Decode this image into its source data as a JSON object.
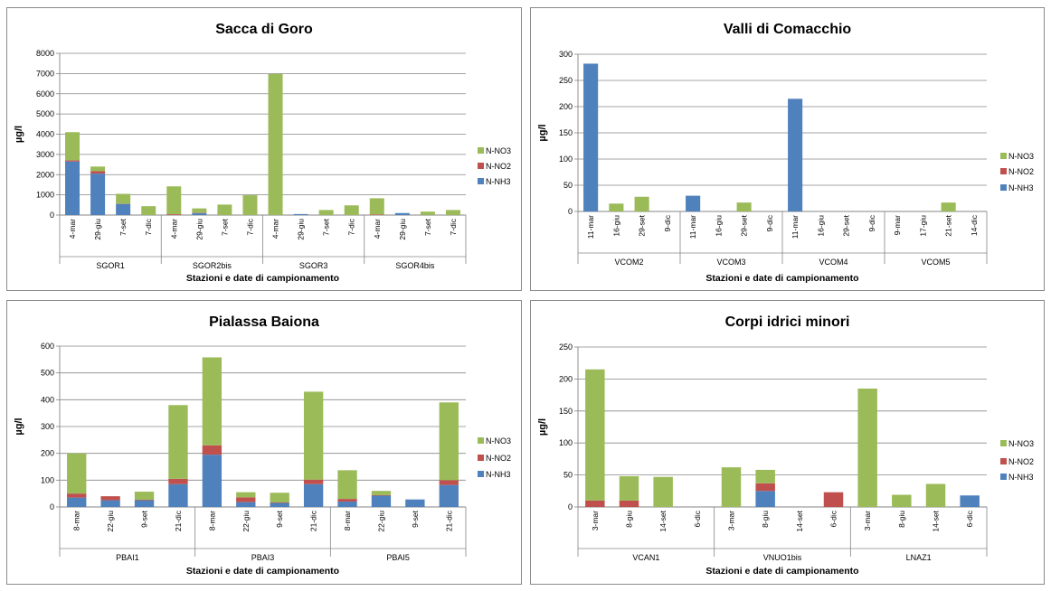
{
  "colors": {
    "N-NH3": "#4f81bd",
    "N-NO2": "#c0504d",
    "N-NO3": "#9bbb59",
    "grid": "#868686",
    "axis": "#868686"
  },
  "chart_data": [
    {
      "type": "bar",
      "stacked": true,
      "title": "Sacca di Goro",
      "ylabel": "µg/l",
      "xlabel": "Stazioni e date di campionamento",
      "ylim": [
        0,
        8000
      ],
      "yticks": [
        "0",
        "1000",
        "2000",
        "3000",
        "4000",
        "5000",
        "6000",
        "7000",
        "8000"
      ],
      "grid": true,
      "legend": "right",
      "groups": [
        {
          "station": "SGOR1",
          "dates": [
            "4-mar",
            "29-giu",
            "7-set",
            "7-dic"
          ]
        },
        {
          "station": "SGOR2bis",
          "dates": [
            "4-mar",
            "29-giu",
            "7-set",
            "7-dic"
          ]
        },
        {
          "station": "SGOR3",
          "dates": [
            "4-mar",
            "29-giu",
            "7-set",
            "7-dic"
          ]
        },
        {
          "station": "SGOR4bis",
          "dates": [
            "4-mar",
            "29-giu",
            "7-set",
            "7-dic"
          ]
        }
      ],
      "series": [
        {
          "name": "N-NH3",
          "values": [
            2650,
            2050,
            550,
            0,
            0,
            100,
            0,
            0,
            0,
            50,
            0,
            0,
            0,
            100,
            0,
            0
          ]
        },
        {
          "name": "N-NO2",
          "values": [
            60,
            120,
            10,
            0,
            40,
            20,
            0,
            0,
            0,
            0,
            0,
            0,
            30,
            0,
            0,
            0
          ]
        },
        {
          "name": "N-NO3",
          "values": [
            1390,
            230,
            490,
            440,
            1380,
            210,
            520,
            980,
            6980,
            0,
            250,
            480,
            800,
            0,
            170,
            250
          ]
        }
      ],
      "legend_order": [
        "N-NO3",
        "N-NO2",
        "N-NH3"
      ]
    },
    {
      "type": "bar",
      "stacked": true,
      "title": "Valli di Comacchio",
      "ylabel": "µg/l",
      "xlabel": "Stazioni e date di campionamento",
      "ylim": [
        0,
        300
      ],
      "yticks": [
        "0",
        "50",
        "100",
        "150",
        "200",
        "250",
        "300"
      ],
      "grid": true,
      "legend": "right",
      "groups": [
        {
          "station": "VCOM2",
          "dates": [
            "11-mar",
            "16-giu",
            "29-set",
            "9-dic"
          ]
        },
        {
          "station": "VCOM3",
          "dates": [
            "11-mar",
            "16-giu",
            "29-set",
            "9-dic"
          ]
        },
        {
          "station": "VCOM4",
          "dates": [
            "11-mar",
            "16-giu",
            "29-set",
            "9-dic"
          ]
        },
        {
          "station": "VCOM5",
          "dates": [
            "9-mar",
            "17-giu",
            "21-set",
            "14-dic"
          ]
        }
      ],
      "series": [
        {
          "name": "N-NH3",
          "values": [
            282,
            0,
            0,
            0,
            30,
            0,
            0,
            0,
            215,
            0,
            0,
            0,
            0,
            0,
            0,
            0
          ]
        },
        {
          "name": "N-NO2",
          "values": [
            0,
            0,
            0,
            0,
            0,
            0,
            0,
            0,
            0,
            0,
            0,
            0,
            0,
            0,
            0,
            0
          ]
        },
        {
          "name": "N-NO3",
          "values": [
            0,
            15,
            28,
            0,
            0,
            0,
            17,
            0,
            0,
            0,
            0,
            0,
            0,
            0,
            17,
            0
          ]
        }
      ],
      "legend_order": [
        "N-NO3",
        "N-NO2",
        "N-NH3"
      ]
    },
    {
      "type": "bar",
      "stacked": true,
      "title": "Pialassa Baiona",
      "ylabel": "µg/l",
      "xlabel": "Stazioni e date di campionamento",
      "ylim": [
        0,
        600
      ],
      "yticks": [
        "0",
        "100",
        "200",
        "300",
        "400",
        "500",
        "600"
      ],
      "grid": true,
      "legend": "right",
      "groups": [
        {
          "station": "PBAI1",
          "dates": [
            "8-mar",
            "22-giu",
            "9-set",
            "21-dic"
          ]
        },
        {
          "station": "PBAI3",
          "dates": [
            "8-mar",
            "22-giu",
            "9-set",
            "21-dic"
          ]
        },
        {
          "station": "PBAI5",
          "dates": [
            "8-mar",
            "22-giu",
            "9-set",
            "21-dic"
          ]
        }
      ],
      "series": [
        {
          "name": "N-NH3",
          "values": [
            35,
            25,
            25,
            85,
            195,
            18,
            15,
            85,
            20,
            42,
            28,
            82
          ]
        },
        {
          "name": "N-NO2",
          "values": [
            15,
            15,
            2,
            20,
            35,
            18,
            2,
            17,
            10,
            2,
            0,
            18
          ]
        },
        {
          "name": "N-NO3",
          "values": [
            150,
            0,
            30,
            275,
            328,
            19,
            36,
            328,
            107,
            16,
            0,
            290
          ]
        }
      ],
      "legend_order": [
        "N-NO3",
        "N-NO2",
        "N-NH3"
      ]
    },
    {
      "type": "bar",
      "stacked": true,
      "title": "Corpi idrici minori",
      "ylabel": "µg/l",
      "xlabel": "Stazioni e date di campionamento",
      "ylim": [
        0,
        250
      ],
      "yticks": [
        "0",
        "50",
        "100",
        "150",
        "200",
        "250"
      ],
      "grid": true,
      "legend": "right",
      "groups": [
        {
          "station": "VCAN1",
          "dates": [
            "3-mar",
            "8-giu",
            "14-set",
            "6-dic"
          ]
        },
        {
          "station": "VNUO1bis",
          "dates": [
            "3-mar",
            "8-giu",
            "14-set",
            "6-dic"
          ]
        },
        {
          "station": "LNAZ1",
          "dates": [
            "3-mar",
            "8-giu",
            "14-set",
            "6-dic"
          ]
        }
      ],
      "series": [
        {
          "name": "N-NH3",
          "values": [
            0,
            0,
            0,
            0,
            0,
            25,
            0,
            0,
            0,
            0,
            0,
            18
          ]
        },
        {
          "name": "N-NO2",
          "values": [
            10,
            10,
            0,
            0,
            0,
            12,
            0,
            23,
            0,
            0,
            0,
            0
          ]
        },
        {
          "name": "N-NO3",
          "values": [
            205,
            38,
            47,
            0,
            62,
            21,
            0,
            0,
            185,
            19,
            36,
            0
          ]
        }
      ],
      "legend_order": [
        "N-NO3",
        "N-NO2",
        "N-NH3"
      ]
    }
  ]
}
